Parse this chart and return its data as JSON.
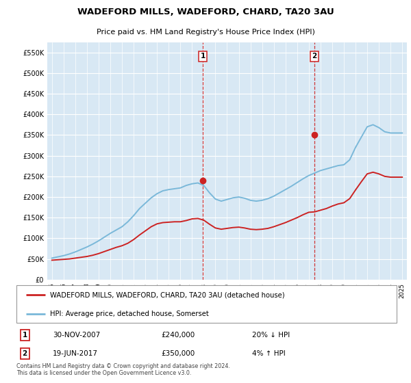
{
  "title": "WADEFORD MILLS, WADEFORD, CHARD, TA20 3AU",
  "subtitle": "Price paid vs. HM Land Registry's House Price Index (HPI)",
  "legend_line1": "WADEFORD MILLS, WADEFORD, CHARD, TA20 3AU (detached house)",
  "legend_line2": "HPI: Average price, detached house, Somerset",
  "sale1_date": "30-NOV-2007",
  "sale1_price": 240000,
  "sale1_label": "20% ↓ HPI",
  "sale2_date": "19-JUN-2017",
  "sale2_price": 350000,
  "sale2_label": "4% ↑ HPI",
  "footnote": "Contains HM Land Registry data © Crown copyright and database right 2024.\nThis data is licensed under the Open Government Licence v3.0.",
  "ylim": [
    0,
    575000
  ],
  "yticks": [
    0,
    50000,
    100000,
    150000,
    200000,
    250000,
    300000,
    350000,
    400000,
    450000,
    500000,
    550000
  ],
  "ytick_labels": [
    "£0",
    "£50K",
    "£100K",
    "£150K",
    "£200K",
    "£250K",
    "£300K",
    "£350K",
    "£400K",
    "£450K",
    "£500K",
    "£550K"
  ],
  "hpi_color": "#7ab8d9",
  "price_color": "#cc2222",
  "bg_color": "#d8e8f4",
  "vline_color": "#cc2222",
  "sale1_year": 2007.92,
  "sale2_year": 2017.47,
  "hpi_years": [
    1995.0,
    1995.5,
    1996.0,
    1996.5,
    1997.0,
    1997.5,
    1998.0,
    1998.5,
    1999.0,
    1999.5,
    2000.0,
    2000.5,
    2001.0,
    2001.5,
    2002.0,
    2002.5,
    2003.0,
    2003.5,
    2004.0,
    2004.5,
    2005.0,
    2005.5,
    2006.0,
    2006.5,
    2007.0,
    2007.5,
    2008.0,
    2008.5,
    2009.0,
    2009.5,
    2010.0,
    2010.5,
    2011.0,
    2011.5,
    2012.0,
    2012.5,
    2013.0,
    2013.5,
    2014.0,
    2014.5,
    2015.0,
    2015.5,
    2016.0,
    2016.5,
    2017.0,
    2017.5,
    2018.0,
    2018.5,
    2019.0,
    2019.5,
    2020.0,
    2020.5,
    2021.0,
    2021.5,
    2022.0,
    2022.5,
    2023.0,
    2023.5,
    2024.0,
    2024.5,
    2025.0
  ],
  "hpi_values": [
    52000,
    55000,
    58000,
    62000,
    67000,
    73000,
    79000,
    86000,
    94000,
    103000,
    112000,
    120000,
    128000,
    140000,
    155000,
    172000,
    185000,
    198000,
    208000,
    215000,
    218000,
    220000,
    222000,
    228000,
    232000,
    234000,
    228000,
    210000,
    195000,
    190000,
    194000,
    198000,
    200000,
    197000,
    192000,
    190000,
    192000,
    196000,
    202000,
    210000,
    218000,
    226000,
    235000,
    244000,
    252000,
    258000,
    264000,
    268000,
    272000,
    276000,
    278000,
    290000,
    320000,
    345000,
    370000,
    375000,
    368000,
    358000,
    355000,
    355000,
    355000
  ],
  "price_years": [
    1995.0,
    1995.5,
    1996.0,
    1996.5,
    1997.0,
    1997.5,
    1998.0,
    1998.5,
    1999.0,
    1999.5,
    2000.0,
    2000.5,
    2001.0,
    2001.5,
    2002.0,
    2002.5,
    2003.0,
    2003.5,
    2004.0,
    2004.5,
    2005.0,
    2005.5,
    2006.0,
    2006.5,
    2007.0,
    2007.5,
    2008.0,
    2008.5,
    2009.0,
    2009.5,
    2010.0,
    2010.5,
    2011.0,
    2011.5,
    2012.0,
    2012.5,
    2013.0,
    2013.5,
    2014.0,
    2014.5,
    2015.0,
    2015.5,
    2016.0,
    2016.5,
    2017.0,
    2017.5,
    2018.0,
    2018.5,
    2019.0,
    2019.5,
    2020.0,
    2020.5,
    2021.0,
    2021.5,
    2022.0,
    2022.5,
    2023.0,
    2023.5,
    2024.0,
    2024.5,
    2025.0
  ],
  "price_values": [
    47000,
    48000,
    49000,
    50000,
    52000,
    54000,
    56000,
    59000,
    63000,
    68000,
    73000,
    78000,
    82000,
    88000,
    97000,
    108000,
    118000,
    128000,
    135000,
    138000,
    139000,
    140000,
    140000,
    143000,
    147000,
    148000,
    144000,
    134000,
    125000,
    122000,
    124000,
    126000,
    127000,
    125000,
    122000,
    121000,
    122000,
    124000,
    128000,
    133000,
    138000,
    144000,
    150000,
    157000,
    163000,
    164000,
    168000,
    172000,
    178000,
    183000,
    186000,
    196000,
    217000,
    237000,
    256000,
    260000,
    256000,
    250000,
    248000,
    248000,
    248000
  ]
}
